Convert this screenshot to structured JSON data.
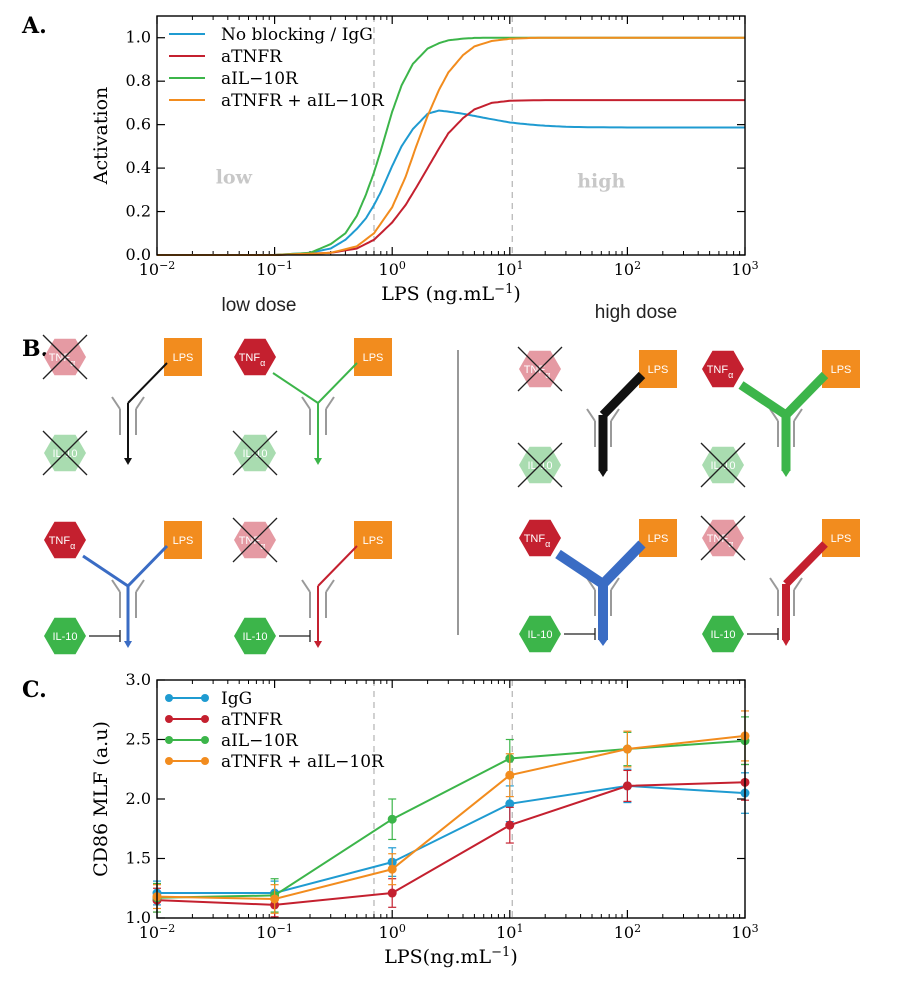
{
  "panel_labels": {
    "a": "A.",
    "b": "B.",
    "c": "C."
  },
  "colors": {
    "no_blocking": "#1f9bd1",
    "atnfr": "#c4202f",
    "ail10r": "#3cb54a",
    "combo": "#f28c1e",
    "gray_receptor": "#9a9a9a",
    "tnf_active": "#c4202f",
    "tnf_blocked": "#e59aa3",
    "il10_active": "#3cb54a",
    "il10_blocked": "#a9dcb0",
    "lps": "#f28c1e",
    "region_text": "#c8c8c8",
    "dashed": "#bdbdbd"
  },
  "chart_data": [
    {
      "type": "line",
      "title": "",
      "xlabel": "LPS (ng.mL",
      "xlabel_sup": "−1",
      "xlabel_close": ")",
      "ylabel": "Activation",
      "xscale": "log",
      "xlim": [
        0.01,
        1000
      ],
      "ylim": [
        0,
        1.1
      ],
      "yticks": [
        "0.0",
        "0.2",
        "0.4",
        "0.6",
        "0.8",
        "1.0"
      ],
      "ytick_values": [
        0,
        0.2,
        0.4,
        0.6,
        0.8,
        1.0
      ],
      "xticks": [
        {
          "base": "10",
          "exp": "−2",
          "value": 0.01
        },
        {
          "base": "10",
          "exp": "−1",
          "value": 0.1
        },
        {
          "base": "10",
          "exp": "0",
          "value": 1
        },
        {
          "base": "10",
          "exp": "1",
          "value": 10
        },
        {
          "base": "10",
          "exp": "2",
          "value": 100
        },
        {
          "base": "10",
          "exp": "3",
          "value": 1000
        }
      ],
      "vlines": [
        0.7,
        10.5
      ],
      "region_labels": [
        {
          "text": "low",
          "x": 0.045,
          "y": 0.33
        },
        {
          "text": "high",
          "x": 60,
          "y": 0.31
        }
      ],
      "legend_position": "top-left",
      "series": [
        {
          "name": "No blocking / IgG",
          "color_key": "no_blocking",
          "x": [
            0.01,
            0.1,
            0.2,
            0.3,
            0.4,
            0.5,
            0.6,
            0.7,
            0.8,
            1.0,
            1.2,
            1.5,
            2.0,
            2.5,
            3.0,
            4.0,
            5.0,
            7.0,
            10.0,
            15.0,
            20.0,
            30.0,
            50.0,
            100.0,
            1000.0
          ],
          "y": [
            0.0,
            0.0,
            0.01,
            0.03,
            0.07,
            0.12,
            0.17,
            0.23,
            0.29,
            0.41,
            0.5,
            0.58,
            0.65,
            0.665,
            0.66,
            0.65,
            0.64,
            0.625,
            0.61,
            0.6,
            0.595,
            0.59,
            0.588,
            0.587,
            0.587
          ]
        },
        {
          "name": "aTNFR",
          "color_key": "atnfr",
          "x": [
            0.01,
            0.1,
            0.3,
            0.5,
            0.7,
            1.0,
            1.3,
            1.6,
            2.0,
            2.5,
            3.0,
            4.0,
            5.0,
            7.0,
            10.0,
            20.0,
            50.0,
            1000.0
          ],
          "y": [
            0.0,
            0.0,
            0.01,
            0.03,
            0.07,
            0.15,
            0.23,
            0.31,
            0.4,
            0.49,
            0.56,
            0.63,
            0.67,
            0.7,
            0.71,
            0.713,
            0.713,
            0.713
          ]
        },
        {
          "name": "aIL−10R",
          "color_key": "ail10r",
          "x": [
            0.01,
            0.1,
            0.2,
            0.3,
            0.4,
            0.5,
            0.6,
            0.7,
            0.8,
            1.0,
            1.2,
            1.5,
            2.0,
            2.5,
            3.0,
            4.0,
            5.0,
            7.0,
            10.0,
            1000.0
          ],
          "y": [
            0.0,
            0.0,
            0.01,
            0.05,
            0.1,
            0.18,
            0.28,
            0.38,
            0.48,
            0.66,
            0.78,
            0.88,
            0.95,
            0.975,
            0.988,
            0.996,
            0.999,
            1.0,
            1.0,
            1.0
          ]
        },
        {
          "name": "aTNFR + aIL−10R",
          "color_key": "combo",
          "x": [
            0.01,
            0.1,
            0.3,
            0.5,
            0.7,
            1.0,
            1.3,
            1.6,
            2.0,
            2.5,
            3.0,
            4.0,
            5.0,
            7.0,
            10.0,
            15.0,
            20.0,
            30.0,
            1000.0
          ],
          "y": [
            0.0,
            0.0,
            0.01,
            0.04,
            0.1,
            0.22,
            0.36,
            0.5,
            0.64,
            0.76,
            0.84,
            0.92,
            0.96,
            0.985,
            0.995,
            0.999,
            1.0,
            1.0,
            1.0
          ]
        }
      ]
    },
    {
      "type": "line",
      "title": "",
      "xlabel": "LPS(ng.mL",
      "xlabel_sup": "−1",
      "xlabel_close": ")",
      "ylabel": "CD86 MLF (a.u)",
      "xscale": "log",
      "xlim": [
        0.01,
        1000
      ],
      "ylim": [
        1.0,
        3.0
      ],
      "yticks": [
        "1.0",
        "1.5",
        "2.0",
        "2.5",
        "3.0"
      ],
      "ytick_values": [
        1.0,
        1.5,
        2.0,
        2.5,
        3.0
      ],
      "xticks": [
        {
          "base": "10",
          "exp": "−2",
          "value": 0.01
        },
        {
          "base": "10",
          "exp": "−1",
          "value": 0.1
        },
        {
          "base": "10",
          "exp": "0",
          "value": 1
        },
        {
          "base": "10",
          "exp": "1",
          "value": 10
        },
        {
          "base": "10",
          "exp": "2",
          "value": 100
        },
        {
          "base": "10",
          "exp": "3",
          "value": 1000
        }
      ],
      "vlines": [
        0.7,
        10.5
      ],
      "legend_position": "top-left",
      "x": [
        0.01,
        0.1,
        1,
        10,
        100,
        1000
      ],
      "series": [
        {
          "name": "IgG",
          "color_key": "no_blocking",
          "values": [
            1.21,
            1.21,
            1.47,
            1.96,
            2.11,
            2.05
          ],
          "errors": [
            0.1,
            0.1,
            0.12,
            0.15,
            0.14,
            0.17
          ]
        },
        {
          "name": "aTNFR",
          "color_key": "atnfr",
          "values": [
            1.15,
            1.11,
            1.21,
            1.78,
            2.11,
            2.14
          ],
          "errors": [
            0.1,
            0.1,
            0.12,
            0.15,
            0.13,
            0.15
          ]
        },
        {
          "name": "aIL−10R",
          "color_key": "ail10r",
          "values": [
            1.17,
            1.19,
            1.83,
            2.34,
            2.42,
            2.49
          ],
          "errors": [
            0.12,
            0.14,
            0.17,
            0.16,
            0.14,
            0.2
          ]
        },
        {
          "name": "aTNFR + aIL−10R",
          "color_key": "combo",
          "values": [
            1.18,
            1.16,
            1.41,
            2.2,
            2.42,
            2.53
          ],
          "errors": [
            0.1,
            0.12,
            0.13,
            0.18,
            0.15,
            0.21
          ]
        }
      ]
    }
  ],
  "diagram": {
    "low_dose_label": "low dose",
    "high_dose_label": "high dose",
    "tnf_label": "TNF",
    "tnf_sub": "α",
    "lps_label": "LPS",
    "il10_label": "IL-10"
  }
}
